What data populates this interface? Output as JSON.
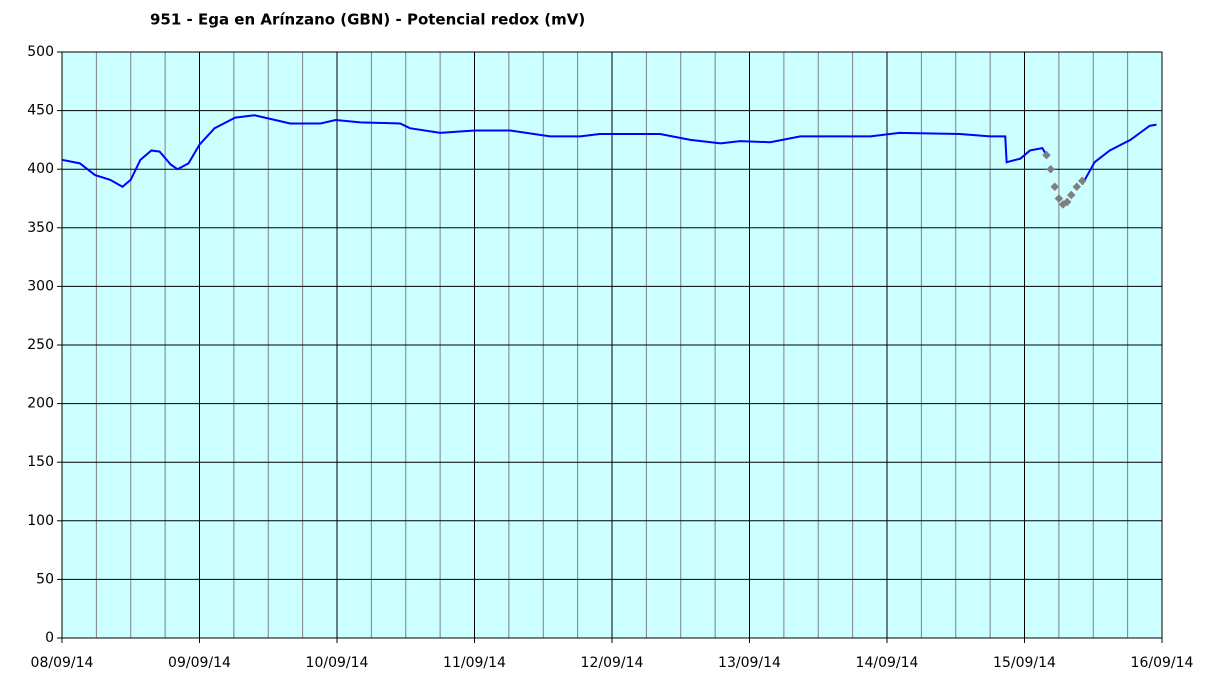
{
  "chart_data": {
    "type": "line",
    "title": "951 - Ega en Arínzano (GBN) - Potencial redox (mV)",
    "xlim": [
      0,
      8
    ],
    "xticks": [
      {
        "value": 0,
        "label": "08/09/14"
      },
      {
        "value": 1,
        "label": "09/09/14"
      },
      {
        "value": 2,
        "label": "10/09/14"
      },
      {
        "value": 3,
        "label": "11/09/14"
      },
      {
        "value": 4,
        "label": "12/09/14"
      },
      {
        "value": 5,
        "label": "13/09/14"
      },
      {
        "value": 6,
        "label": "14/09/14"
      },
      {
        "value": 7,
        "label": "15/09/14"
      },
      {
        "value": 8,
        "label": "16/09/14"
      }
    ],
    "ylim": [
      0,
      500
    ],
    "yticks": [
      0,
      50,
      100,
      150,
      200,
      250,
      300,
      350,
      400,
      450,
      500
    ],
    "grid": true,
    "background": "#ccffff",
    "series": [
      {
        "color": "#0000ff",
        "style": "line",
        "x": [
          0,
          0.13,
          0.24,
          0.35,
          0.44,
          0.5,
          0.57,
          0.65,
          0.71,
          0.79,
          0.84,
          0.92,
          1.0,
          1.11,
          1.26,
          1.4,
          1.55,
          1.66,
          1.88,
          1.99,
          2.17,
          2.46,
          2.53,
          2.75,
          3.0,
          3.26,
          3.55,
          3.77,
          3.91,
          4.35,
          4.57,
          4.79,
          4.93,
          5.15,
          5.37,
          5.88,
          6.09,
          6.53,
          6.75,
          6.86,
          6.87,
          6.97,
          7.04,
          7.13,
          7.16,
          7.29,
          7.42,
          7.51,
          7.62,
          7.77,
          7.91,
          7.96
        ],
        "values": [
          408,
          405,
          395,
          391,
          385,
          391,
          408,
          416,
          415,
          404,
          400,
          405,
          421,
          435,
          444,
          446,
          442,
          439,
          439,
          442,
          440,
          439,
          435,
          431,
          433,
          433,
          428,
          428,
          430,
          430,
          425,
          422,
          424,
          423,
          428,
          428,
          431,
          430,
          428,
          428,
          406,
          409,
          416,
          418,
          412,
          null,
          387,
          406,
          416,
          425,
          437,
          438
        ]
      },
      {
        "color": "#808080",
        "style": "markers",
        "x": [
          7.16,
          7.19,
          7.22,
          7.25,
          7.28,
          7.31,
          7.34,
          7.38,
          7.42
        ],
        "values": [
          412,
          400,
          385,
          375,
          370,
          372,
          378,
          385,
          390
        ]
      }
    ]
  }
}
